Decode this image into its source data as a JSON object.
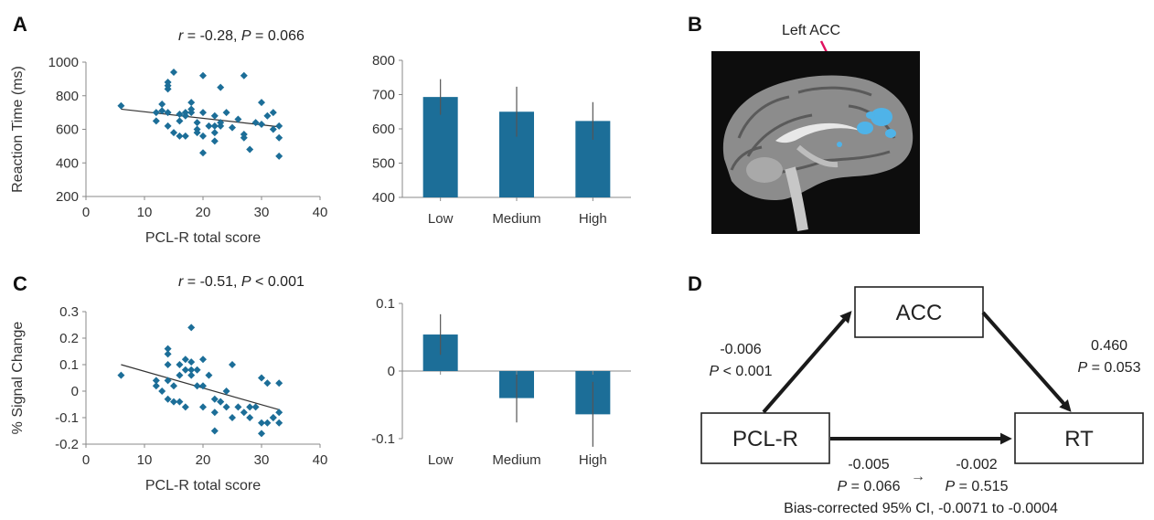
{
  "figure": {
    "panel_labels": [
      "A",
      "B",
      "C",
      "D"
    ],
    "colors": {
      "series": "#1c6e98",
      "axis": "#888888",
      "trend": "#333333",
      "callout": "#e0115f",
      "activation": "#4fb3e8"
    }
  },
  "panel_a": {
    "stat_r": "r",
    "stat_text": " = -0.28, ",
    "stat_p": "P",
    "stat_value": " = 0.066"
  },
  "panel_b": {
    "callout_label": "Left ACC",
    "image": "sagittal-brain-slice"
  },
  "panel_c": {
    "stat_r": "r",
    "stat_text": " = -0.51, ",
    "stat_p": "P",
    "stat_value": " < 0.001"
  },
  "panel_d": {
    "nodes": {
      "mediator": "ACC",
      "predictor": "PCL-R",
      "outcome": "RT"
    },
    "path_a": {
      "coef": "-0.006",
      "p_label": "P",
      "p_value": " < 0.001"
    },
    "path_b": {
      "coef": "0.460",
      "p_label": "P",
      "p_value": " = 0.053"
    },
    "path_c": {
      "coef": "-0.005",
      "p_label": "P",
      "p_value": " = 0.066"
    },
    "path_c_prime": {
      "coef": "-0.002",
      "p_label": "P",
      "p_value": " = 0.515"
    },
    "arrow_glyph": "→",
    "ci_text": "Bias-corrected 95% CI, -0.0071 to -0.0004"
  },
  "chart_data": [
    {
      "id": "A-scatter",
      "type": "scatter",
      "xlabel": "PCL-R total score",
      "ylabel": "Reaction Time (ms)",
      "xlim": [
        0,
        40
      ],
      "ylim": [
        200,
        1000
      ],
      "xticks": [
        0,
        10,
        20,
        30,
        40
      ],
      "yticks": [
        200,
        400,
        600,
        800,
        1000
      ],
      "trend": [
        [
          6,
          720
        ],
        [
          33,
          615
        ]
      ],
      "points": [
        [
          6,
          740
        ],
        [
          12,
          700
        ],
        [
          12,
          650
        ],
        [
          13,
          710
        ],
        [
          13,
          750
        ],
        [
          14,
          620
        ],
        [
          14,
          700
        ],
        [
          14,
          840
        ],
        [
          14,
          860
        ],
        [
          14,
          880
        ],
        [
          15,
          940
        ],
        [
          15,
          580
        ],
        [
          16,
          560
        ],
        [
          16,
          650
        ],
        [
          16,
          690
        ],
        [
          17,
          700
        ],
        [
          17,
          680
        ],
        [
          17,
          560
        ],
        [
          18,
          760
        ],
        [
          18,
          700
        ],
        [
          18,
          720
        ],
        [
          19,
          640
        ],
        [
          19,
          600
        ],
        [
          19,
          580
        ],
        [
          20,
          920
        ],
        [
          20,
          460
        ],
        [
          20,
          560
        ],
        [
          20,
          700
        ],
        [
          21,
          620
        ],
        [
          22,
          580
        ],
        [
          22,
          530
        ],
        [
          22,
          620
        ],
        [
          22,
          680
        ],
        [
          23,
          850
        ],
        [
          23,
          620
        ],
        [
          23,
          640
        ],
        [
          24,
          700
        ],
        [
          25,
          610
        ],
        [
          26,
          660
        ],
        [
          27,
          920
        ],
        [
          27,
          570
        ],
        [
          27,
          550
        ],
        [
          28,
          480
        ],
        [
          29,
          640
        ],
        [
          30,
          760
        ],
        [
          30,
          630
        ],
        [
          31,
          680
        ],
        [
          32,
          600
        ],
        [
          32,
          700
        ],
        [
          33,
          440
        ],
        [
          33,
          550
        ],
        [
          33,
          620
        ]
      ]
    },
    {
      "id": "A-bar",
      "type": "bar",
      "categories": [
        "Low",
        "Medium",
        "High"
      ],
      "values": [
        693,
        650,
        623
      ],
      "errors": [
        52,
        73,
        55
      ],
      "ylim": [
        400,
        800
      ],
      "yticks": [
        400,
        500,
        600,
        700,
        800
      ]
    },
    {
      "id": "C-scatter",
      "type": "scatter",
      "xlabel": "PCL-R total score",
      "ylabel": "% Signal Change",
      "xlim": [
        0,
        40
      ],
      "ylim": [
        -0.2,
        0.3
      ],
      "xticks": [
        0,
        10,
        20,
        30,
        40
      ],
      "yticks": [
        -0.2,
        -0.1,
        0,
        0.1,
        0.2,
        0.3
      ],
      "trend": [
        [
          6,
          0.1
        ],
        [
          33,
          -0.07
        ]
      ],
      "points": [
        [
          6,
          0.06
        ],
        [
          12,
          0.04
        ],
        [
          12,
          0.02
        ],
        [
          13,
          0.0
        ],
        [
          14,
          0.16
        ],
        [
          14,
          0.14
        ],
        [
          14,
          0.1
        ],
        [
          14,
          0.04
        ],
        [
          14,
          -0.03
        ],
        [
          15,
          0.02
        ],
        [
          15,
          -0.04
        ],
        [
          16,
          0.1
        ],
        [
          16,
          -0.04
        ],
        [
          16,
          0.06
        ],
        [
          17,
          0.08
        ],
        [
          17,
          -0.06
        ],
        [
          17,
          0.12
        ],
        [
          18,
          0.24
        ],
        [
          18,
          0.06
        ],
        [
          18,
          0.11
        ],
        [
          18,
          0.08
        ],
        [
          19,
          0.02
        ],
        [
          19,
          0.08
        ],
        [
          20,
          0.12
        ],
        [
          20,
          -0.06
        ],
        [
          20,
          0.02
        ],
        [
          21,
          0.06
        ],
        [
          22,
          -0.03
        ],
        [
          22,
          -0.15
        ],
        [
          22,
          -0.08
        ],
        [
          23,
          -0.04
        ],
        [
          23,
          -0.04
        ],
        [
          24,
          0.0
        ],
        [
          24,
          -0.06
        ],
        [
          25,
          0.1
        ],
        [
          25,
          -0.1
        ],
        [
          26,
          -0.06
        ],
        [
          27,
          -0.08
        ],
        [
          28,
          -0.06
        ],
        [
          28,
          -0.1
        ],
        [
          29,
          -0.06
        ],
        [
          30,
          0.05
        ],
        [
          30,
          -0.16
        ],
        [
          30,
          -0.12
        ],
        [
          31,
          0.03
        ],
        [
          31,
          -0.12
        ],
        [
          32,
          -0.1
        ],
        [
          32,
          -0.1
        ],
        [
          33,
          0.03
        ],
        [
          33,
          -0.08
        ],
        [
          33,
          -0.12
        ]
      ]
    },
    {
      "id": "C-bar",
      "type": "bar",
      "categories": [
        "Low",
        "Medium",
        "High"
      ],
      "values": [
        0.054,
        -0.04,
        -0.064
      ],
      "errors": [
        0.03,
        0.036,
        0.048
      ],
      "ylim": [
        -0.1,
        0.1
      ],
      "yticks": [
        -0.1,
        0,
        0.1
      ],
      "ytick_labels": [
        "-0.1",
        "0",
        "0.1"
      ]
    }
  ]
}
